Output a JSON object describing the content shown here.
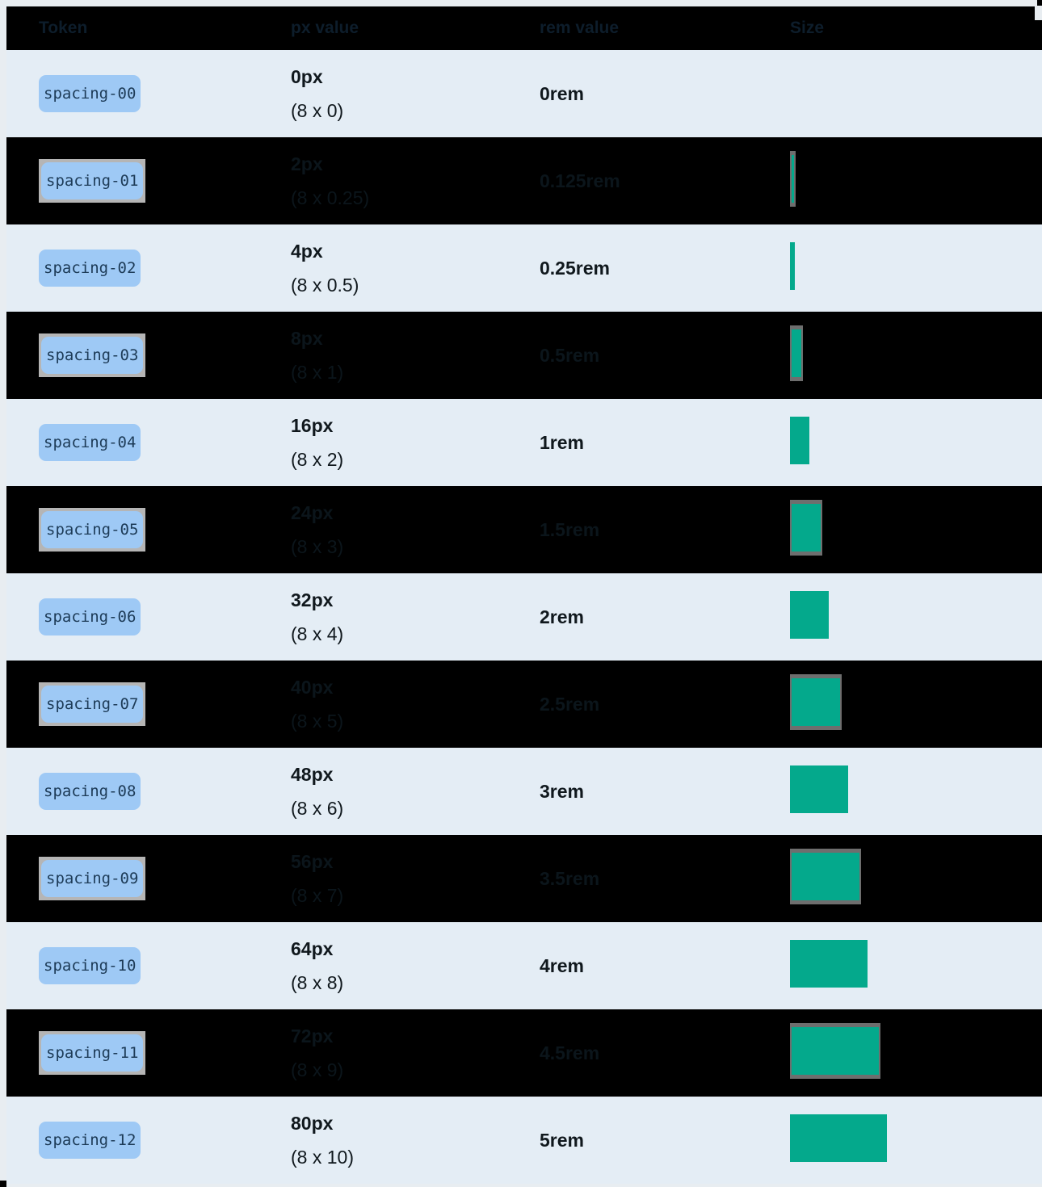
{
  "table": {
    "headers": [
      "Token",
      "px value",
      "rem value",
      "Size"
    ],
    "rows": [
      {
        "token": "spacing-00",
        "px": "0px",
        "multiplier": "(8 x 0)",
        "rem": "0rem",
        "theme": "light"
      },
      {
        "token": "spacing-01",
        "px": "2px",
        "multiplier": "(8 x 0.25)",
        "rem": "0.125rem",
        "theme": "dark"
      },
      {
        "token": "spacing-02",
        "px": "4px",
        "multiplier": "(8 x 0.5)",
        "rem": "0.25rem",
        "theme": "light"
      },
      {
        "token": "spacing-03",
        "px": "8px",
        "multiplier": "(8 x 1)",
        "rem": "0.5rem",
        "theme": "dark"
      },
      {
        "token": "spacing-04",
        "px": "16px",
        "multiplier": "(8 x 2)",
        "rem": "1rem",
        "theme": "light"
      },
      {
        "token": "spacing-05",
        "px": "24px",
        "multiplier": "(8 x 3)",
        "rem": "1.5rem",
        "theme": "dark"
      },
      {
        "token": "spacing-06",
        "px": "32px",
        "multiplier": "(8 x 4)",
        "rem": "2rem",
        "theme": "light"
      },
      {
        "token": "spacing-07",
        "px": "40px",
        "multiplier": "(8 x 5)",
        "rem": "2.5rem",
        "theme": "dark"
      },
      {
        "token": "spacing-08",
        "px": "48px",
        "multiplier": "(8 x 6)",
        "rem": "3rem",
        "theme": "light"
      },
      {
        "token": "spacing-09",
        "px": "56px",
        "multiplier": "(8 x 7)",
        "rem": "3.5rem",
        "theme": "dark"
      },
      {
        "token": "spacing-10",
        "px": "64px",
        "multiplier": "(8 x 8)",
        "rem": "4rem",
        "theme": "light"
      },
      {
        "token": "spacing-11",
        "px": "72px",
        "multiplier": "(8 x 9)",
        "rem": "4.5rem",
        "theme": "dark"
      },
      {
        "token": "spacing-12",
        "px": "80px",
        "multiplier": "(8 x 10)",
        "rem": "5rem",
        "theme": "light"
      }
    ]
  },
  "colors": {
    "accent_teal": "#04a98c",
    "token_chip_blue": "#9ec9f5",
    "dark_row": "#000000",
    "light_row": "#e4edf5",
    "chip_halo_grey": "#b5b5b5",
    "bar_halo_grey": "#6e6e6e"
  }
}
